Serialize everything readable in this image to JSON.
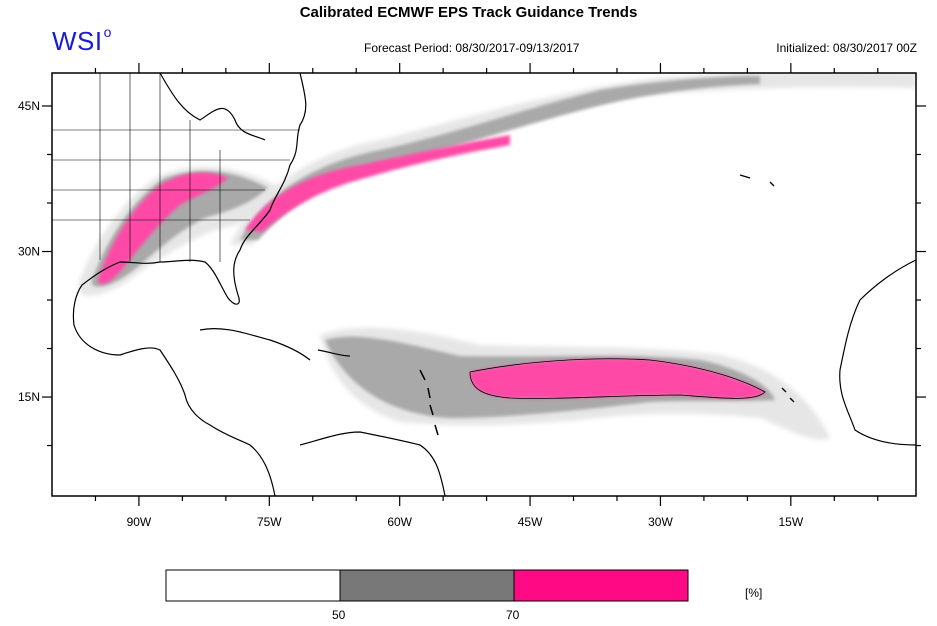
{
  "title": "Calibrated ECMWF EPS Track Guidance Trends",
  "brand": {
    "name": "WSI",
    "mark": "o"
  },
  "forecast_period": "Forecast Period: 08/30/2017-09/13/2017",
  "initialized": "Initialized: 08/30/2017 00Z",
  "map": {
    "lon_range": [
      -100,
      -0.6
    ],
    "lat_range": [
      4.8,
      48.4
    ],
    "lon_ticks": [
      {
        "value": -90,
        "label": "90W"
      },
      {
        "value": -75,
        "label": "75W"
      },
      {
        "value": -60,
        "label": "60W"
      },
      {
        "value": -45,
        "label": "45W"
      },
      {
        "value": -30,
        "label": "30W"
      },
      {
        "value": -15,
        "label": "15W"
      }
    ],
    "lat_ticks": [
      {
        "value": 45,
        "label": "45N"
      },
      {
        "value": 30,
        "label": "30N"
      },
      {
        "value": 15,
        "label": "15N"
      }
    ]
  },
  "legend": {
    "unit": "[%]",
    "bins": [
      {
        "color": "#ffffff"
      },
      {
        "color": "#787878"
      },
      {
        "color": "#ff0a84"
      }
    ],
    "thresholds": [
      "50",
      "70"
    ]
  },
  "colors": {
    "low_prob": "#e4e4e4",
    "mid_prob": "#a8a8a8",
    "high_prob": "#ff4aa6",
    "logo": "#1a1adb"
  }
}
